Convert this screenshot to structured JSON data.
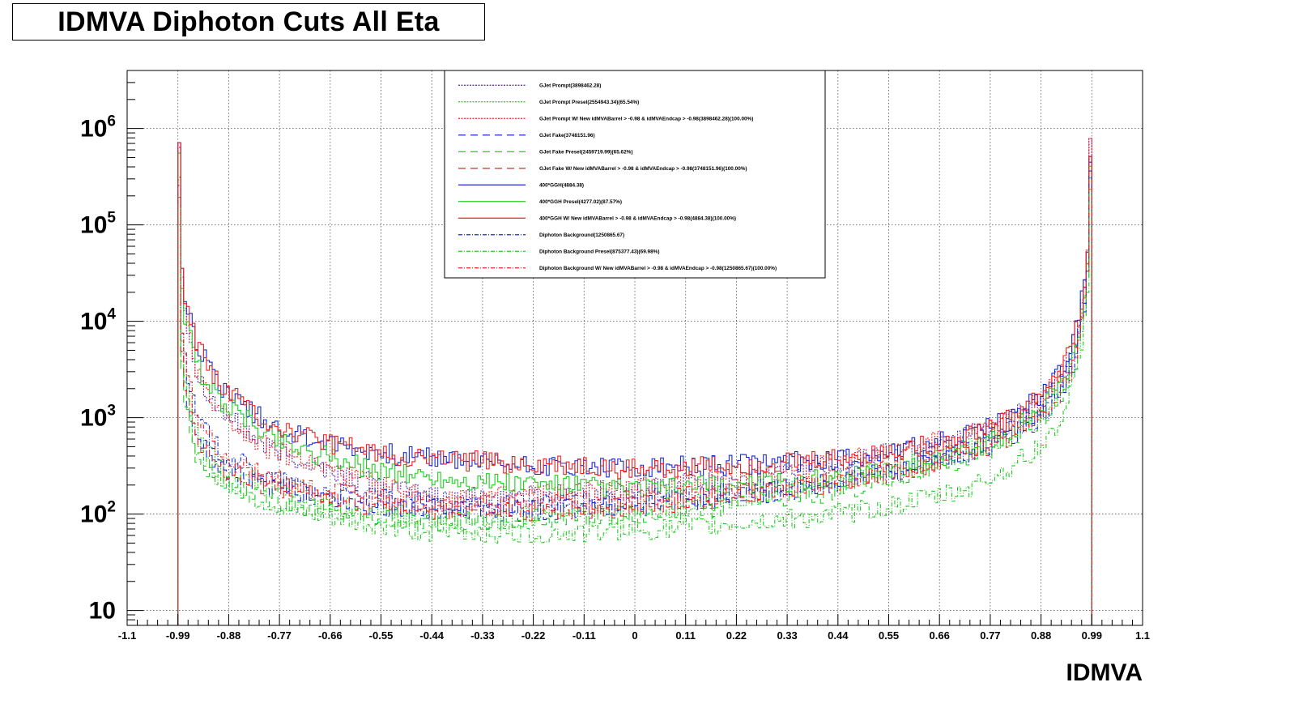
{
  "chart_data": {
    "type": "line",
    "title": "IDMVA Diphoton Cuts All Eta",
    "xlabel": "IDMVA",
    "ylabel": "",
    "xlim": [
      -1.1,
      1.1
    ],
    "ylim": [
      7,
      4000000
    ],
    "yscale": "log",
    "grid": true,
    "legend_position": "top-center",
    "x_ticks": [
      "-1.1",
      "-0.99",
      "-0.88",
      "-0.77",
      "-0.66",
      "-0.55",
      "-0.44",
      "-0.33",
      "-0.22",
      "-0.11",
      "0",
      "0.11",
      "0.22",
      "0.33",
      "0.44",
      "0.55",
      "0.66",
      "0.77",
      "0.88",
      "0.99",
      "1.1"
    ],
    "y_ticks": [
      {
        "value": 10,
        "base": "10",
        "exp": ""
      },
      {
        "value": 100,
        "base": "10",
        "exp": "2"
      },
      {
        "value": 1000,
        "base": "10",
        "exp": "3"
      },
      {
        "value": 10000,
        "base": "10",
        "exp": "4"
      },
      {
        "value": 100000,
        "base": "10",
        "exp": "5"
      },
      {
        "value": 1000000,
        "base": "10",
        "exp": "6"
      }
    ],
    "series": [
      {
        "name": "GJet Prompt(3898462.28)",
        "color": "#5a2aa8",
        "dash": "2,1.5",
        "x": [
          -0.99,
          -0.98,
          -0.95,
          -0.9,
          -0.8,
          -0.7,
          -0.6,
          -0.5,
          -0.4,
          -0.3,
          -0.2,
          -0.1,
          0,
          0.1,
          0.2,
          0.3,
          0.4,
          0.5,
          0.6,
          0.7,
          0.8,
          0.88,
          0.93,
          0.96,
          0.98,
          0.99
        ],
        "y": [
          3000000,
          20000,
          3000,
          1200,
          500,
          330,
          230,
          170,
          150,
          150,
          160,
          170,
          180,
          210,
          230,
          270,
          320,
          400,
          500,
          600,
          900,
          1500,
          3000,
          8000,
          40000,
          3000000
        ]
      },
      {
        "name": "GJet Prompt Presel(2554943.34)(65.54%)",
        "color": "#22cc22",
        "dash": "2,1.5",
        "x": [
          -0.99,
          -0.98,
          -0.95,
          -0.9,
          -0.8,
          -0.7,
          -0.6,
          -0.5,
          -0.4,
          -0.3,
          -0.2,
          -0.1,
          0,
          0.1,
          0.2,
          0.3,
          0.4,
          0.5,
          0.6,
          0.7,
          0.8,
          0.88,
          0.93,
          0.96,
          0.98,
          0.99
        ],
        "y": [
          2000000,
          4000,
          700,
          330,
          190,
          140,
          110,
          95,
          90,
          90,
          95,
          100,
          105,
          120,
          140,
          170,
          200,
          260,
          330,
          420,
          650,
          1100,
          2000,
          5000,
          25000,
          1800000
        ]
      },
      {
        "name": "GJet Prompt W/ New idMVABarrel > -0.98 & idMVAEndcap > -0.98(3898462.28)(100.00%)",
        "color": "#ee2222",
        "dash": "2,1.5",
        "x": [
          -0.99,
          -0.98,
          -0.95,
          -0.9,
          -0.8,
          -0.7,
          -0.6,
          -0.5,
          -0.4,
          -0.3,
          -0.2,
          -0.1,
          0,
          0.1,
          0.2,
          0.3,
          0.4,
          0.5,
          0.6,
          0.7,
          0.8,
          0.88,
          0.93,
          0.96,
          0.98,
          0.99
        ],
        "y": [
          3000000,
          20000,
          3000,
          1200,
          500,
          330,
          230,
          170,
          150,
          150,
          160,
          170,
          180,
          210,
          230,
          270,
          320,
          400,
          500,
          600,
          900,
          1500,
          3000,
          8000,
          40000,
          3000000
        ]
      },
      {
        "name": "GJet Fake(3748151.96)",
        "color": "#1a2ad0",
        "dash": "9,6",
        "x": [
          -0.99,
          -0.98,
          -0.95,
          -0.9,
          -0.8,
          -0.7,
          -0.6,
          -0.5,
          -0.4,
          -0.3,
          -0.2,
          -0.1,
          0,
          0.1,
          0.2,
          0.3,
          0.4,
          0.5,
          0.6,
          0.7,
          0.8,
          0.88,
          0.93,
          0.96,
          0.98,
          0.99
        ],
        "y": [
          2500000,
          3000,
          600,
          300,
          200,
          160,
          130,
          115,
          110,
          105,
          110,
          115,
          120,
          135,
          150,
          170,
          200,
          250,
          320,
          420,
          700,
          1200,
          2500,
          6000,
          30000,
          1500000
        ]
      },
      {
        "name": "GJet Fake Presel(2459719.99)(65.62%)",
        "color": "#22cc22",
        "dash": "9,6",
        "x": [
          -0.99,
          -0.98,
          -0.95,
          -0.9,
          -0.8,
          -0.7,
          -0.6,
          -0.5,
          -0.4,
          -0.3,
          -0.2,
          -0.1,
          0,
          0.1,
          0.2,
          0.3,
          0.4,
          0.5,
          0.6,
          0.7,
          0.8,
          0.88,
          0.93,
          0.96,
          0.98,
          0.99
        ],
        "y": [
          1500000,
          2000,
          400,
          220,
          150,
          120,
          100,
          90,
          85,
          85,
          90,
          95,
          100,
          110,
          125,
          140,
          165,
          200,
          260,
          340,
          550,
          950,
          2000,
          4500,
          22000,
          1000000
        ]
      },
      {
        "name": "GJet Fake W/ New idMVABarrel > -0.98 & idMVAEndcap > -0.98(3748151.96)(100.00%)",
        "color": "#ee2222",
        "dash": "9,6",
        "x": [
          -0.99,
          -0.98,
          -0.95,
          -0.9,
          -0.8,
          -0.7,
          -0.6,
          -0.5,
          -0.4,
          -0.3,
          -0.2,
          -0.1,
          0,
          0.1,
          0.2,
          0.3,
          0.4,
          0.5,
          0.6,
          0.7,
          0.8,
          0.88,
          0.93,
          0.96,
          0.98,
          0.99
        ],
        "y": [
          2500000,
          3000,
          600,
          300,
          200,
          160,
          130,
          115,
          110,
          105,
          110,
          115,
          120,
          135,
          150,
          170,
          200,
          250,
          320,
          420,
          700,
          1200,
          2500,
          6000,
          30000,
          1500000
        ]
      },
      {
        "name": "400*GGH(4884.38)",
        "color": "#1a2ad0",
        "dash": "",
        "x": [
          -0.99,
          -0.98,
          -0.95,
          -0.9,
          -0.8,
          -0.7,
          -0.6,
          -0.5,
          -0.4,
          -0.3,
          -0.2,
          -0.1,
          0,
          0.1,
          0.2,
          0.3,
          0.4,
          0.5,
          0.6,
          0.7,
          0.8,
          0.88,
          0.93,
          0.96,
          0.98,
          0.99
        ],
        "y": [
          3200000,
          25000,
          6000,
          2200,
          900,
          600,
          470,
          400,
          370,
          340,
          320,
          310,
          290,
          310,
          320,
          340,
          360,
          400,
          480,
          600,
          900,
          1700,
          3500,
          9000,
          40000,
          1600000
        ]
      },
      {
        "name": "400*GGH Presel(4277.02)(87.57%)",
        "color": "#22cc22",
        "dash": "",
        "x": [
          -0.99,
          -0.98,
          -0.95,
          -0.9,
          -0.8,
          -0.7,
          -0.6,
          -0.5,
          -0.4,
          -0.3,
          -0.2,
          -0.1,
          0,
          0.1,
          0.2,
          0.3,
          0.4,
          0.5,
          0.6,
          0.7,
          0.8,
          0.88,
          0.93,
          0.96,
          0.98,
          0.99
        ],
        "y": [
          2800000,
          15000,
          3500,
          1500,
          700,
          430,
          320,
          260,
          230,
          210,
          200,
          190,
          180,
          190,
          200,
          210,
          230,
          260,
          320,
          420,
          650,
          1200,
          2500,
          6500,
          30000,
          1300000
        ]
      },
      {
        "name": "400*GGH W/ New idMVABarrel > -0.98 & idMVAEndcap > -0.98(4884.38)(100.00%)",
        "color": "#ee2222",
        "dash": "",
        "x": [
          -0.99,
          -0.98,
          -0.95,
          -0.9,
          -0.8,
          -0.7,
          -0.6,
          -0.5,
          -0.4,
          -0.3,
          -0.2,
          -0.1,
          0,
          0.1,
          0.2,
          0.3,
          0.4,
          0.5,
          0.6,
          0.7,
          0.8,
          0.88,
          0.93,
          0.96,
          0.98,
          0.99
        ],
        "y": [
          3200000,
          25000,
          6000,
          2200,
          900,
          600,
          470,
          400,
          370,
          340,
          320,
          310,
          290,
          310,
          320,
          340,
          360,
          400,
          480,
          600,
          900,
          1700,
          3500,
          9000,
          40000,
          1600000
        ]
      },
      {
        "name": "Diphoton Background(1250865.67)",
        "color": "#1a2ad0",
        "dash": "5,2,1,2",
        "x": [
          -0.99,
          -0.98,
          -0.95,
          -0.9,
          -0.8,
          -0.7,
          -0.6,
          -0.5,
          -0.4,
          -0.3,
          -0.2,
          -0.1,
          0,
          0.1,
          0.2,
          0.3,
          0.4,
          0.5,
          0.6,
          0.7,
          0.8,
          0.88,
          0.93,
          0.96,
          0.98,
          0.99
        ],
        "y": [
          1500000,
          5000,
          1000,
          450,
          240,
          180,
          150,
          135,
          125,
          120,
          125,
          130,
          140,
          150,
          165,
          185,
          210,
          250,
          300,
          380,
          600,
          1000,
          2000,
          5000,
          25000,
          1200000
        ]
      },
      {
        "name": "Diphoton Background Presel(875377.43)(69.98%)",
        "color": "#22cc22",
        "dash": "5,2,1,2",
        "x": [
          -0.99,
          -0.98,
          -0.95,
          -0.9,
          -0.8,
          -0.7,
          -0.6,
          -0.5,
          -0.4,
          -0.3,
          -0.2,
          -0.1,
          0,
          0.1,
          0.2,
          0.3,
          0.4,
          0.5,
          0.6,
          0.7,
          0.8,
          0.88,
          0.93,
          0.96,
          0.98,
          0.99
        ],
        "y": [
          1000000,
          2500,
          500,
          230,
          130,
          95,
          80,
          70,
          65,
          63,
          62,
          65,
          68,
          72,
          78,
          86,
          95,
          110,
          135,
          170,
          280,
          500,
          1100,
          3000,
          15000,
          800000
        ]
      },
      {
        "name": "Diphoton Background W/ New idMVABarrel > -0.98 & idMVAEndcap > -0.98(1250865.67)(100.00%)",
        "color": "#ee2222",
        "dash": "5,2,1,2",
        "x": [
          -0.99,
          -0.98,
          -0.95,
          -0.9,
          -0.8,
          -0.7,
          -0.6,
          -0.5,
          -0.4,
          -0.3,
          -0.2,
          -0.1,
          0,
          0.1,
          0.2,
          0.3,
          0.4,
          0.5,
          0.6,
          0.7,
          0.8,
          0.88,
          0.93,
          0.96,
          0.98,
          0.99
        ],
        "y": [
          1500000,
          5000,
          1000,
          450,
          240,
          180,
          150,
          135,
          125,
          120,
          125,
          130,
          140,
          150,
          165,
          185,
          210,
          250,
          300,
          380,
          600,
          1000,
          2000,
          5000,
          25000,
          1200000
        ]
      }
    ]
  }
}
